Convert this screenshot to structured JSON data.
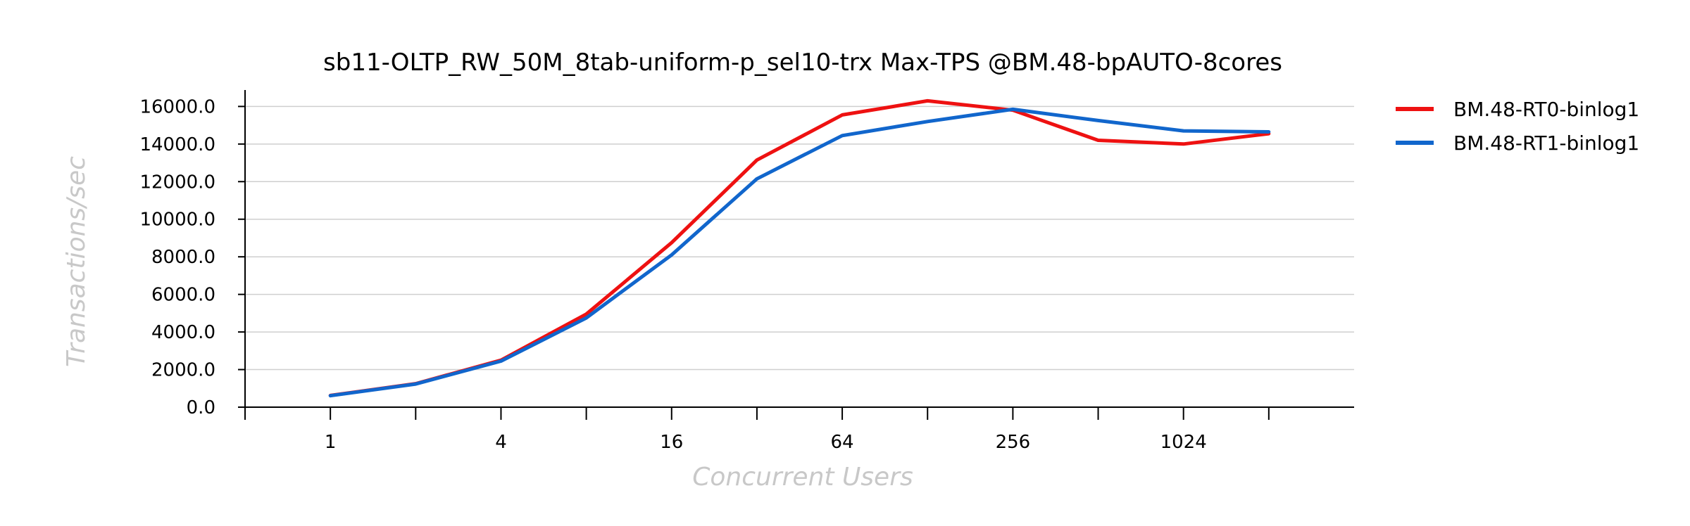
{
  "chart_data": {
    "type": "line",
    "title": "sb11-OLTP_RW_50M_8tab-uniform-p_sel10-trx Max-TPS @BM.48-bpAUTO-8cores",
    "xlabel": "Concurrent Users",
    "ylabel": "Transactions/sec",
    "x_scale": "log2",
    "x": [
      1,
      2,
      4,
      8,
      16,
      32,
      64,
      128,
      256,
      512,
      1024,
      2048
    ],
    "x_tick_labels": [
      "1",
      "4",
      "16",
      "64",
      "256",
      "1024"
    ],
    "x_tick_values": [
      1,
      4,
      16,
      64,
      256,
      1024
    ],
    "x_minor_ticks": [
      0.5,
      2,
      8,
      32,
      128,
      512,
      2048
    ],
    "xlim": [
      0.5,
      4096
    ],
    "ylim": [
      0,
      16800
    ],
    "y_ticks": [
      0,
      2000,
      4000,
      6000,
      8000,
      10000,
      12000,
      14000,
      16000
    ],
    "y_tick_labels": [
      "0.0",
      "2000.0",
      "4000.0",
      "6000.0",
      "8000.0",
      "10000.0",
      "12000.0",
      "14000.0",
      "16000.0"
    ],
    "grid": true,
    "legend_position": "outside-right",
    "series": [
      {
        "name": "BM.48-RT0-binlog1",
        "color": "#ee1111",
        "values": [
          620,
          1250,
          2500,
          4950,
          8750,
          13150,
          15550,
          16300,
          15800,
          14200,
          14000,
          14550
        ]
      },
      {
        "name": "BM.48-RT1-binlog1",
        "color": "#1166cc",
        "values": [
          610,
          1230,
          2450,
          4750,
          8100,
          12150,
          14450,
          15200,
          15850,
          15250,
          14700,
          14650
        ]
      }
    ]
  }
}
